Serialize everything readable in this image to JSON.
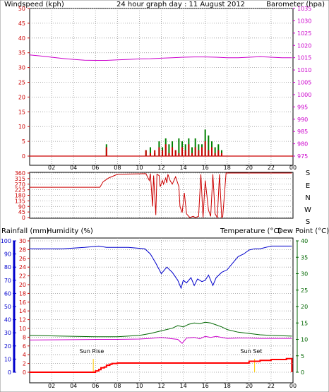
{
  "header": {
    "left_label": "Windspeed (kph)",
    "title": "24 hour graph day : 11 August 2012",
    "right_label": "Barometer (hpa)"
  },
  "dir_panel": {
    "compass_labels": [
      "S",
      "E",
      "N",
      "W",
      "S"
    ]
  },
  "bottom_header": {
    "rainfall_label": "Rainfall (mm)",
    "humidity_label": "Humidity (%)",
    "temperature_label": "Temperature (°C)",
    "dewpoint_label": "Dew Point (°C)"
  },
  "markers": {
    "sunrise_label": "Sun Rise",
    "sunset_label": "Sun Set"
  },
  "colors": {
    "wind": "#cc0000",
    "gust": "#008000",
    "barometer": "#cc00cc",
    "humidity": "#0000cc",
    "temperature": "#006600",
    "dewpoint": "#cc00cc",
    "rain": "#ff0000",
    "sun": "#ffcc00"
  },
  "chart_data": [
    {
      "id": "wind_baro",
      "type": "line",
      "x_ticks": [
        "02",
        "04",
        "06",
        "08",
        "10",
        "12",
        "14",
        "16",
        "18",
        "20",
        "22",
        "00"
      ],
      "xlim": [
        0,
        24
      ],
      "y_left_ticks": [
        0,
        5,
        10,
        15,
        20,
        25,
        30,
        35,
        40,
        45,
        50
      ],
      "ylim_left": [
        0,
        50
      ],
      "y_right_ticks": [
        975,
        980,
        985,
        990,
        995,
        1000,
        1005,
        1010,
        1015,
        1020,
        1025,
        1030,
        1035
      ],
      "ylim_right": [
        975,
        1035
      ],
      "series": [
        {
          "name": "Barometer (hpa)",
          "axis": "right",
          "x": [
            0,
            1,
            2,
            3,
            4,
            5,
            6,
            7,
            8,
            9,
            10,
            11,
            12,
            13,
            14,
            15,
            16,
            17,
            18,
            19,
            20,
            21,
            22,
            23,
            23.9
          ],
          "values": [
            1016.1,
            1015.7,
            1015.2,
            1014.7,
            1014.3,
            1014.0,
            1013.9,
            1013.9,
            1014.1,
            1014.3,
            1014.5,
            1014.6,
            1014.8,
            1015.0,
            1015.2,
            1015.3,
            1015.3,
            1015.2,
            1015.0,
            1015.0,
            1015.2,
            1015.4,
            1015.2,
            1015.0,
            1015.0
          ]
        },
        {
          "name": "Windspeed (kph)",
          "axis": "left",
          "x": [
            7.0,
            10.6,
            11.0,
            11.4,
            11.8,
            12.1,
            12.4,
            12.7,
            13.0,
            13.3,
            13.6,
            13.9,
            14.2,
            14.5,
            14.8,
            15.1,
            15.4,
            15.7,
            16.0,
            16.3,
            16.6,
            16.9,
            17.2,
            17.5
          ],
          "values": [
            3,
            2,
            1,
            2,
            3,
            2,
            4,
            1,
            3,
            2,
            1,
            3,
            2,
            4,
            1,
            3,
            2,
            3,
            5,
            2,
            3,
            1,
            2,
            1
          ]
        },
        {
          "name": "Gust (kph)",
          "axis": "left",
          "x": [
            7.0,
            10.6,
            11.0,
            11.4,
            11.8,
            12.1,
            12.4,
            12.7,
            13.0,
            13.3,
            13.6,
            13.9,
            14.2,
            14.5,
            14.8,
            15.1,
            15.4,
            15.7,
            16.0,
            16.3,
            16.6,
            16.9,
            17.2,
            17.5
          ],
          "values": [
            4,
            2,
            3,
            1,
            5,
            3,
            6,
            4,
            5,
            2,
            6,
            5,
            4,
            6,
            3,
            6,
            4,
            4,
            9,
            7,
            5,
            3,
            4,
            2
          ]
        }
      ]
    },
    {
      "id": "wind_dir",
      "type": "line",
      "xlim": [
        0,
        24
      ],
      "y_ticks": [
        0,
        45,
        90,
        135,
        180,
        225,
        270,
        315,
        360
      ],
      "ylim": [
        0,
        360
      ],
      "series": [
        {
          "name": "Wind direction (°)",
          "x": [
            0,
            6.4,
            6.7,
            7.2,
            8.0,
            10.6,
            10.9,
            11.0,
            11.2,
            11.3,
            11.5,
            11.6,
            11.8,
            11.9,
            12.1,
            12.2,
            12.4,
            12.5,
            12.6,
            12.8,
            13.0,
            13.3,
            13.6,
            13.7,
            13.9,
            14.1,
            14.3,
            14.6,
            14.9,
            15.1,
            15.4,
            15.6,
            15.8,
            16.0,
            16.3,
            16.5,
            16.7,
            16.9,
            17.1,
            17.3,
            17.5,
            17.6,
            17.9,
            23.9
          ],
          "values": [
            245,
            245,
            290,
            320,
            350,
            355,
            300,
            355,
            90,
            340,
            20,
            350,
            340,
            250,
            300,
            270,
            320,
            280,
            350,
            300,
            270,
            330,
            250,
            90,
            40,
            200,
            30,
            0,
            10,
            0,
            10,
            350,
            0,
            300,
            60,
            10,
            350,
            30,
            0,
            350,
            0,
            10,
            360,
            360
          ]
        }
      ]
    },
    {
      "id": "temp_hum",
      "type": "line",
      "x_ticks": [
        "02",
        "04",
        "06",
        "08",
        "10",
        "12",
        "14",
        "16",
        "18",
        "20",
        "22",
        "00"
      ],
      "xlim": [
        0,
        24
      ],
      "y_humidity_ticks": [
        0,
        10,
        20,
        30,
        40,
        50,
        60,
        70,
        80,
        90,
        100
      ],
      "ylim_humidity": [
        0,
        100
      ],
      "y_rain_ticks": [
        0,
        2,
        4,
        6,
        8,
        10,
        12,
        14,
        16,
        18,
        20,
        22,
        24,
        26,
        28,
        30
      ],
      "ylim_rain": [
        0,
        30
      ],
      "y_temp_ticks": [
        0,
        5,
        10,
        15,
        20,
        25,
        30,
        35,
        40
      ],
      "ylim_temp": [
        0,
        40
      ],
      "series": [
        {
          "name": "Humidity (%)",
          "axis": "humidity",
          "x": [
            0,
            3,
            5,
            6.3,
            7.0,
            9,
            10.5,
            11.0,
            11.5,
            12.0,
            12.5,
            13.0,
            13.5,
            13.8,
            14.0,
            14.3,
            14.7,
            15.0,
            15.3,
            15.7,
            16.0,
            16.3,
            16.7,
            17.0,
            17.5,
            18.0,
            18.5,
            19.0,
            19.5,
            20,
            20.5,
            21,
            22,
            23.9
          ],
          "values": [
            94,
            94,
            95,
            96,
            95,
            95,
            94,
            90,
            83,
            75,
            80,
            76,
            70,
            64,
            70,
            68,
            72,
            66,
            71,
            69,
            70,
            74,
            66,
            72,
            76,
            78,
            83,
            88,
            90,
            93,
            94,
            94,
            96,
            96
          ]
        },
        {
          "name": "Temperature (°C)",
          "axis": "temp",
          "x": [
            0,
            3,
            6,
            8,
            10,
            11,
            12,
            13,
            13.5,
            14,
            14.5,
            15,
            15.5,
            16,
            16.5,
            17,
            17.5,
            18,
            19,
            20,
            21,
            22,
            23.9
          ],
          "values": [
            11.2,
            11.0,
            10.8,
            10.8,
            11.2,
            11.8,
            12.6,
            13.4,
            14.2,
            13.8,
            14.6,
            15.0,
            14.8,
            15.2,
            15.0,
            14.4,
            13.8,
            13.0,
            12.2,
            11.8,
            11.4,
            11.2,
            11.0
          ]
        },
        {
          "name": "Dew Point (°C)",
          "axis": "temp",
          "x": [
            0,
            3,
            6,
            8,
            10,
            11,
            12,
            13,
            13.5,
            13.9,
            14.3,
            15,
            15.5,
            16,
            16.5,
            17,
            17.5,
            18,
            19,
            20,
            21,
            22,
            23.9
          ],
          "values": [
            9.8,
            9.9,
            10.0,
            10.0,
            10.1,
            10.3,
            10.6,
            10.2,
            10.0,
            8.8,
            10.4,
            10.6,
            10.2,
            10.9,
            10.6,
            10.9,
            10.6,
            10.3,
            10.4,
            10.4,
            10.3,
            10.3,
            10.3
          ]
        },
        {
          "name": "Rainfall (mm)",
          "axis": "rain",
          "x": [
            0,
            5.8,
            6.0,
            6.3,
            6.5,
            6.8,
            7.0,
            7.3,
            7.5,
            8.0,
            19.8,
            20.0,
            21.0,
            22.0,
            23.2,
            23.4,
            23.8,
            23.9
          ],
          "values": [
            0,
            0,
            0.3,
            0.6,
            1.0,
            1.2,
            1.6,
            1.8,
            2.0,
            2.1,
            2.1,
            2.5,
            2.7,
            2.9,
            2.9,
            3.1,
            3.1,
            0
          ]
        }
      ],
      "sun_rise_hour": 5.8,
      "sun_set_hour": 20.5
    }
  ]
}
